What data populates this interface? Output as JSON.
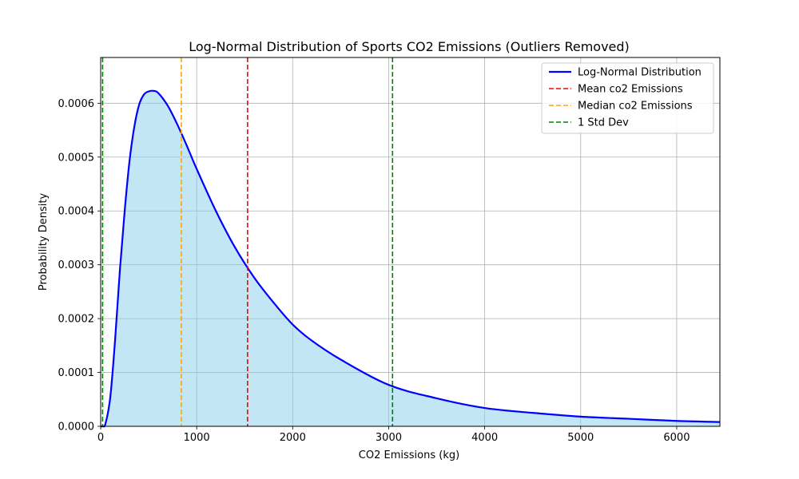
{
  "chart_data": {
    "type": "line",
    "title": "Log-Normal Distribution of Sports CO2 Emissions (Outliers Removed)",
    "xlabel": "CO2 Emissions (kg)",
    "ylabel": "Probability Density",
    "xlim": [
      0,
      6450
    ],
    "ylim": [
      0,
      0.000685
    ],
    "xticks": [
      0,
      1000,
      2000,
      3000,
      4000,
      5000,
      6000
    ],
    "xtick_labels": [
      "0",
      "1000",
      "2000",
      "3000",
      "4000",
      "5000",
      "6000"
    ],
    "yticks": [
      0,
      0.0001,
      0.0002,
      0.0003,
      0.0004,
      0.0005,
      0.0006
    ],
    "ytick_labels": [
      "0.0000",
      "0.0001",
      "0.0002",
      "0.0003",
      "0.0004",
      "0.0005",
      "0.0006"
    ],
    "grid": true,
    "legend_position": "top-right",
    "series": [
      {
        "name": "Log-Normal Distribution",
        "style": "solid",
        "color": "#0000ff",
        "fill": "#87ceeb",
        "x": [
          0,
          20,
          50,
          100,
          150,
          200,
          250,
          300,
          350,
          400,
          450,
          500,
          550,
          600,
          700,
          800,
          900,
          1000,
          1200,
          1400,
          1600,
          1800,
          2000,
          2200,
          2500,
          3000,
          3500,
          4000,
          4500,
          5000,
          5500,
          6000,
          6450
        ],
        "y": [
          0,
          1e-07,
          5e-06,
          5.4e-05,
          0.00016,
          0.00029,
          0.0004,
          0.000492,
          0.000556,
          0.000597,
          0.000616,
          0.000622,
          0.000623,
          0.000619,
          0.000595,
          0.00056,
          0.00052,
          0.000478,
          0.0004,
          0.000332,
          0.000276,
          0.00023,
          0.000189,
          0.000159,
          0.000124,
          7.7e-05,
          5.2e-05,
          3.4e-05,
          2.5e-05,
          1.8e-05,
          1.4e-05,
          1e-05,
          8e-06
        ]
      }
    ],
    "vlines": [
      {
        "name": "Mean co2 Emissions",
        "x": 1530,
        "color": "#ff0000",
        "style": "dashed"
      },
      {
        "name": "Median co2 Emissions",
        "x": 840,
        "color": "#ffa500",
        "style": "dashed"
      },
      {
        "name": "1 Std Dev",
        "x": 20,
        "color": "#008000",
        "style": "dashed"
      },
      {
        "name": "1 Std Dev",
        "x": 3040,
        "color": "#008000",
        "style": "dashed"
      }
    ],
    "legend": [
      {
        "label": "Log-Normal Distribution",
        "color": "#0000ff",
        "style": "solid"
      },
      {
        "label": "Mean co2 Emissions",
        "color": "#ff0000",
        "style": "dashed"
      },
      {
        "label": "Median co2 Emissions",
        "color": "#ffa500",
        "style": "dashed"
      },
      {
        "label": "1 Std Dev",
        "color": "#008000",
        "style": "dashed"
      }
    ]
  }
}
